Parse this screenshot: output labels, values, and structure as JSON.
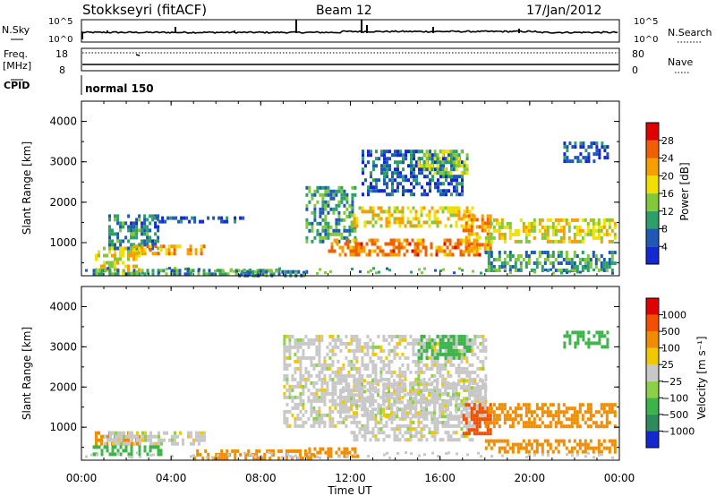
{
  "header": {
    "station": "Stokkseyri (fitACF)",
    "beam": "Beam 12",
    "date": "17/Jan/2012"
  },
  "top_panel": {
    "left_label": "N.Sky",
    "right_label": "N.Search",
    "left_ticks": [
      "10^5",
      "10^0"
    ],
    "right_ticks": [
      "10^5",
      "10^0"
    ]
  },
  "freq_panel": {
    "left_label": "Freq.",
    "left_unit": "[MHz]",
    "right_label": "Nave",
    "left_ticks": [
      "18",
      "8"
    ],
    "right_ticks": [
      "80",
      "0"
    ]
  },
  "cpid": {
    "label": "CPID",
    "value": "normal 150"
  },
  "chart_data": [
    {
      "type": "heatmap",
      "title": "",
      "quantity": "Power",
      "ylabel": "Slant Range [km]",
      "ylim": [
        180,
        4500
      ],
      "y_ticks": [
        "1000",
        "2000",
        "3000",
        "4000"
      ],
      "xlim_hours": [
        0,
        24
      ],
      "colorbar": {
        "label": "Power [dB]",
        "ticks": [
          "4",
          "8",
          "12",
          "16",
          "20",
          "24",
          "28"
        ],
        "colors": [
          "#1428d2",
          "#1e5ab4",
          "#2f9f6a",
          "#82c83a",
          "#f0e000",
          "#f5a000",
          "#f06000",
          "#e00000"
        ]
      },
      "blocks": [
        {
          "t": [
            0.6,
            2.6
          ],
          "r": [
            200,
            900
          ],
          "p": 18
        },
        {
          "t": [
            1.2,
            3.4
          ],
          "r": [
            900,
            1700
          ],
          "p": 8
        },
        {
          "t": [
            2.3,
            5.5
          ],
          "r": [
            700,
            950
          ],
          "p": 22
        },
        {
          "t": [
            3.2,
            7.2
          ],
          "r": [
            1550,
            1650
          ],
          "p": 6
        },
        {
          "t": [
            0.5,
            9.0
          ],
          "r": [
            200,
            350
          ],
          "p": 10
        },
        {
          "t": [
            7.0,
            10.0
          ],
          "r": [
            200,
            320
          ],
          "p": 8
        },
        {
          "t": [
            10.0,
            12.2
          ],
          "r": [
            1000,
            2400
          ],
          "p": 10
        },
        {
          "t": [
            11.0,
            17.8
          ],
          "r": [
            700,
            1100
          ],
          "p": 24
        },
        {
          "t": [
            12.0,
            17.5
          ],
          "r": [
            1400,
            1900
          ],
          "p": 18
        },
        {
          "t": [
            12.5,
            17.0
          ],
          "r": [
            2200,
            3300
          ],
          "p": 6
        },
        {
          "t": [
            15.0,
            17.2
          ],
          "r": [
            2700,
            3300
          ],
          "p": 14
        },
        {
          "t": [
            17.0,
            18.2
          ],
          "r": [
            800,
            1700
          ],
          "p": 22
        },
        {
          "t": [
            18.0,
            23.8
          ],
          "r": [
            1050,
            1600
          ],
          "p": 18
        },
        {
          "t": [
            18.0,
            23.8
          ],
          "r": [
            350,
            800
          ],
          "p": 10
        },
        {
          "t": [
            21.5,
            23.5
          ],
          "r": [
            3000,
            3500
          ],
          "p": 5
        }
      ]
    },
    {
      "type": "heatmap",
      "title": "",
      "quantity": "Velocity",
      "ylabel": "Slant Range [km]",
      "xlabel": "Time UT",
      "ylim": [
        180,
        4500
      ],
      "y_ticks": [
        "1000",
        "2000",
        "3000",
        "4000"
      ],
      "x_ticks": [
        "00:00",
        "04:00",
        "08:00",
        "12:00",
        "16:00",
        "20:00",
        "00:00"
      ],
      "xlim_hours": [
        0,
        24
      ],
      "colorbar": {
        "label": "Velocity [m s⁻¹]",
        "ticks": [
          "1000",
          "500",
          "100",
          "25",
          "−25",
          "−100",
          "−500",
          "−1000"
        ],
        "colors": [
          "#1428d2",
          "#2f8c5a",
          "#3cb44a",
          "#8cd04a",
          "#c8c8c8",
          "#f0c800",
          "#f08c00",
          "#f05000",
          "#e00000"
        ]
      },
      "blocks": [
        {
          "t": [
            0.6,
            2.6
          ],
          "r": [
            600,
            900
          ],
          "v": -100
        },
        {
          "t": [
            1.0,
            5.5
          ],
          "r": [
            600,
            900
          ],
          "v": 0
        },
        {
          "t": [
            0.5,
            3.5
          ],
          "r": [
            350,
            550
          ],
          "v": 150
        },
        {
          "t": [
            5.0,
            8.5
          ],
          "r": [
            250,
            450
          ],
          "v": -100
        },
        {
          "t": [
            8.5,
            10.5
          ],
          "r": [
            250,
            450
          ],
          "v": -100
        },
        {
          "t": [
            9.0,
            18.0
          ],
          "r": [
            1000,
            3300
          ],
          "v": 0
        },
        {
          "t": [
            11.5,
            18.0
          ],
          "r": [
            1300,
            2200
          ],
          "v": 0
        },
        {
          "t": [
            12.0,
            17.5
          ],
          "r": [
            700,
            1000
          ],
          "v": 0
        },
        {
          "t": [
            15.0,
            17.3
          ],
          "r": [
            2700,
            3300
          ],
          "v": 150
        },
        {
          "t": [
            17.0,
            18.2
          ],
          "r": [
            800,
            1600
          ],
          "v": -500
        },
        {
          "t": [
            18.0,
            23.8
          ],
          "r": [
            1050,
            1600
          ],
          "v": -100
        },
        {
          "t": [
            18.0,
            23.8
          ],
          "r": [
            350,
            700
          ],
          "v": -100
        },
        {
          "t": [
            21.5,
            23.5
          ],
          "r": [
            3000,
            3400
          ],
          "v": 100
        },
        {
          "t": [
            10.0,
            12.5
          ],
          "r": [
            250,
            500
          ],
          "v": -100
        }
      ]
    }
  ]
}
